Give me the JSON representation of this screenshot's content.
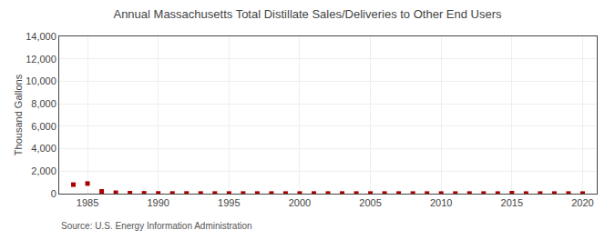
{
  "chart_data": {
    "type": "scatter",
    "title": "Annual Massachusetts Total Distillate Sales/Deliveries to Other End Users",
    "ylabel": "Thousand Gallons",
    "annotations": [
      "Source: U.S. Energy Information Administration"
    ],
    "x": [
      1984,
      1985,
      1986,
      1987,
      1988,
      1989,
      1990,
      1991,
      1992,
      1993,
      1994,
      1995,
      1996,
      1997,
      1998,
      1999,
      2000,
      2001,
      2002,
      2003,
      2004,
      2005,
      2006,
      2007,
      2008,
      2009,
      2010,
      2011,
      2012,
      2013,
      2014,
      2015,
      2016,
      2017,
      2018,
      2019,
      2020
    ],
    "values": [
      800,
      900,
      200,
      80,
      40,
      30,
      20,
      15,
      15,
      12,
      12,
      12,
      12,
      12,
      10,
      10,
      10,
      12,
      10,
      12,
      10,
      12,
      10,
      10,
      8,
      8,
      8,
      8,
      8,
      8,
      8,
      40,
      8,
      8,
      8,
      8,
      8
    ],
    "color": "#aa0000",
    "marker": "square",
    "xlim": [
      1983,
      2021
    ],
    "xticks": [
      1985,
      1990,
      1995,
      2000,
      2005,
      2010,
      2015,
      2020
    ],
    "ylim": [
      0,
      14000
    ],
    "yticks": [
      0,
      {
        "value": 2000,
        "label": "2,000"
      },
      {
        "value": 4000,
        "label": "4,000"
      },
      {
        "value": 6000,
        "label": "6,000"
      },
      {
        "value": 8000,
        "label": "8,000"
      },
      {
        "value": 10000,
        "label": "10,000"
      },
      {
        "value": 12000,
        "label": "12,000"
      },
      {
        "value": 14000,
        "label": "14,000"
      }
    ],
    "grid": true
  }
}
